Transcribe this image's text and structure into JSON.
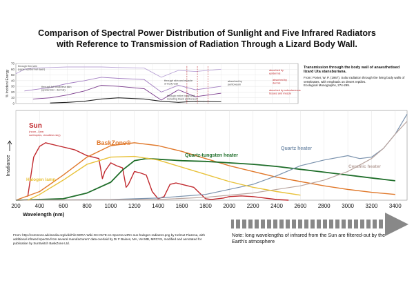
{
  "title_line1": "Comparison of Spectral Power Distribution of Sunlight and Five Infrared Radiators",
  "title_line2": "with Reference to Transmission of Radiation Through a Lizard Body Wall.",
  "side_note": {
    "heading": "Transmission through the body wall of anaesthetised lizard Uta stansburiana.",
    "ref1": "From: Porter, W. P. (1967). Solar radiation through the living body walls of vertebrates, with emphasis on desert reptiles.",
    "ref2": "Ecological Monographs, 274-299."
  },
  "source_text": "From: http://commons.wikimedia.org/wiki/File:WIRA-Wiki-GH-017E-en-Spectra-wIRA-sun-halogen-radiators.png by Helmut Piazena, with additional infrared spectra from several manufacturers' data overlaid by Dr F Baines, MA, Vet MB, MRCVS, modified and annotated for publication by SunSwitch BaskZone Ltd.",
  "note_text": "Note: long wavelengths of infrared from the Sun are filtered-out by the Earth's atmosphere",
  "colors": {
    "sun": "#c0282d",
    "baskzone": "#e0782a",
    "quartz_tungsten": "#1f6e2a",
    "quartz_heater": "#7a92ad",
    "ceramic": "#b9a49e",
    "halogen": "#e8c23a",
    "transmission": "#7a3a8c",
    "arrow": "#888888"
  },
  "chart_data": [
    {
      "type": "line",
      "title": "",
      "ylabel": "% Incident Energy",
      "ylim": [
        0,
        70
      ],
      "yticks": [
        "0",
        "10",
        "20",
        "30",
        "40",
        "50",
        "60",
        "70"
      ],
      "xlim": [
        200,
        3500
      ],
      "grid": true,
      "annotations": [
        "through thin skin (upper epidermal layer)",
        "through full thickness skin (epidermis + dermis)",
        "through skin and muscle of body wall",
        "through entire body wall including black peritoneum",
        "absorbed by peritoneum",
        "absorbed by epidermis",
        "absorbed by dermis",
        "absorbed by subcutaneous tissues and muscle"
      ],
      "series": [
        {
          "x": [
            200,
            300,
            400,
            600,
            800,
            1000,
            1200,
            1400,
            1700,
            1900,
            2100,
            2300,
            2600
          ],
          "values": [
            52,
            60,
            62,
            63,
            64,
            64,
            64,
            63,
            62,
            46,
            58,
            56,
            60
          ]
        },
        {
          "x": [
            300,
            400,
            600,
            800,
            1000,
            1200,
            1400,
            1700,
            1900,
            2100,
            2300,
            2600
          ],
          "values": [
            22,
            24,
            28,
            35,
            40,
            46,
            44,
            42,
            20,
            32,
            24,
            30
          ]
        },
        {
          "x": [
            400,
            600,
            800,
            1000,
            1200,
            1400,
            1700,
            1900,
            2100,
            2300,
            2600
          ],
          "values": [
            8,
            10,
            15,
            22,
            32,
            30,
            26,
            6,
            24,
            12,
            18
          ]
        },
        {
          "x": [
            600,
            800,
            1000,
            1200,
            1400,
            1700,
            1900,
            2100,
            2300,
            2600
          ],
          "values": [
            1,
            2,
            4,
            8,
            10,
            8,
            4,
            2,
            4,
            3
          ]
        }
      ]
    },
    {
      "type": "line",
      "xlabel": "Wavelength (nm)",
      "ylabel": "Irradiance",
      "xlim": [
        200,
        3500
      ],
      "xticks": [
        "200",
        "400",
        "600",
        "800",
        "1000",
        "1200",
        "1400",
        "1600",
        "1800",
        "2000",
        "2200",
        "2400",
        "2600",
        "2800",
        "3000",
        "3200",
        "3400"
      ],
      "grid": true,
      "series": [
        {
          "name": "Sun",
          "label_note": "(noon, June, subtropics, cloudless sky, sea level)",
          "x": [
            300,
            350,
            400,
            450,
            500,
            550,
            600,
            650,
            700,
            750,
            800,
            850,
            900,
            930,
            950,
            1000,
            1050,
            1100,
            1130,
            1150,
            1200,
            1250,
            1300,
            1350,
            1400,
            1450,
            1500,
            1550,
            1600,
            1650,
            1700,
            1750,
            1800,
            1850,
            1900,
            1950,
            2000,
            2100,
            2200,
            2300,
            2400,
            2500
          ],
          "values": [
            5,
            60,
            75,
            80,
            78,
            76,
            74,
            72,
            70,
            66,
            62,
            60,
            58,
            30,
            40,
            52,
            48,
            45,
            18,
            22,
            40,
            38,
            35,
            12,
            2,
            5,
            22,
            24,
            22,
            20,
            18,
            10,
            2,
            1,
            2,
            3,
            5,
            6,
            5,
            3,
            1,
            0
          ]
        },
        {
          "name": "BaskZone®",
          "x": [
            200,
            400,
            600,
            800,
            1000,
            1200,
            1400,
            1600,
            1800,
            2000,
            2200,
            2400,
            2600,
            2800,
            3000,
            3200,
            3400
          ],
          "values": [
            0,
            12,
            35,
            60,
            76,
            80,
            76,
            68,
            58,
            48,
            40,
            32,
            26,
            20,
            15,
            11,
            8
          ]
        },
        {
          "name": "Quartz-tungsten heater",
          "x": [
            200,
            600,
            800,
            1000,
            1100,
            1200,
            1300,
            1400,
            1600,
            1800,
            2000,
            2200,
            2400,
            2600,
            2800,
            3000,
            3200,
            3400
          ],
          "values": [
            0,
            2,
            10,
            25,
            42,
            55,
            58,
            57,
            55,
            54,
            52,
            50,
            47,
            43,
            39,
            35,
            31,
            27
          ]
        },
        {
          "name": "Quartz heater",
          "x": [
            200,
            1000,
            1400,
            1800,
            2200,
            2400,
            2600,
            2800,
            3000,
            3100,
            3200,
            3300,
            3400,
            3500
          ],
          "values": [
            0,
            1,
            3,
            8,
            22,
            34,
            48,
            56,
            62,
            58,
            60,
            72,
            92,
            120
          ]
        },
        {
          "name": "Ceramic heater",
          "x": [
            200,
            1400,
            1800,
            2200,
            2600,
            2800,
            3000,
            3200,
            3300,
            3400,
            3500
          ],
          "values": [
            0,
            1,
            4,
            10,
            20,
            28,
            40,
            58,
            72,
            92,
            110
          ]
        },
        {
          "name": "Halogen lamp",
          "x": [
            300,
            400,
            600,
            800,
            1000,
            1200,
            1400,
            1600,
            1800,
            2000,
            2200,
            2400,
            2600
          ],
          "values": [
            0,
            8,
            28,
            50,
            60,
            61,
            56,
            46,
            36,
            26,
            18,
            12,
            7
          ]
        }
      ]
    }
  ]
}
